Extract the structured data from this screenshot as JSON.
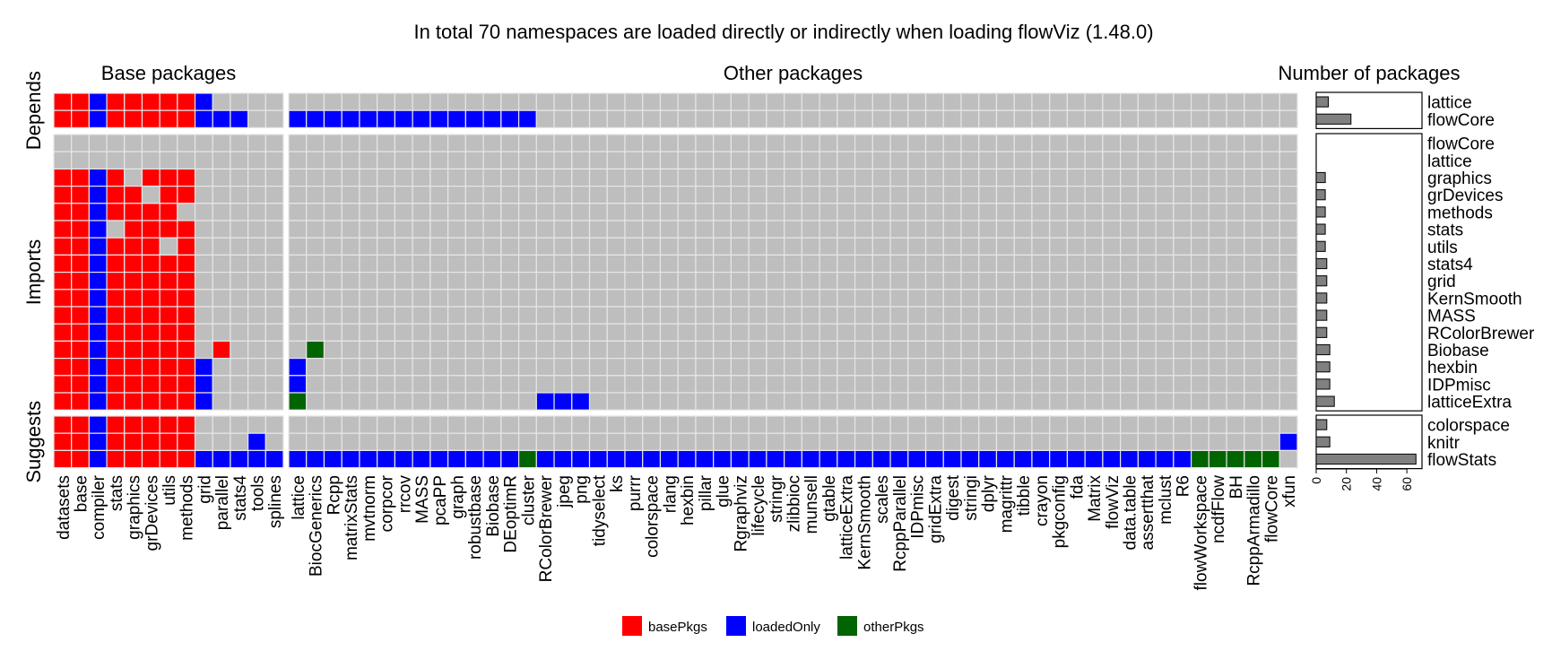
{
  "chart_data": {
    "type": "heatmap",
    "title": "In total 70 namespaces are loaded directly or indirectly when loading flowViz (1.48.0)",
    "panel_titles": [
      "Base packages",
      "Other packages",
      "Number of packages"
    ],
    "group_labels": [
      "Depends",
      "Imports",
      "Suggests"
    ],
    "columns_base": [
      "datasets",
      "base",
      "compiler",
      "stats",
      "graphics",
      "grDevices",
      "utils",
      "methods",
      "grid",
      "parallel",
      "stats4",
      "tools",
      "splines"
    ],
    "columns_other": [
      "lattice",
      "BiocGenerics",
      "Rcpp",
      "matrixStats",
      "mvtnorm",
      "corpcor",
      "rrcov",
      "MASS",
      "pcaPP",
      "graph",
      "robustbase",
      "Biobase",
      "DEoptimR",
      "cluster",
      "RColorBrewer",
      "jpeg",
      "png",
      "tidyselect",
      "ks",
      "purrr",
      "colorspace",
      "rlang",
      "hexbin",
      "pillar",
      "glue",
      "Rgraphviz",
      "lifecycle",
      "stringr",
      "zlibbioc",
      "munsell",
      "gtable",
      "latticeExtra",
      "KernSmooth",
      "scales",
      "RcppParallel",
      "IDPmisc",
      "gridExtra",
      "digest",
      "stringi",
      "dplyr",
      "magrittr",
      "tibble",
      "crayon",
      "pkgconfig",
      "fda",
      "Matrix",
      "flowViz",
      "data.table",
      "assertthat",
      "mclust",
      "R6",
      "flowWorkspace",
      "ncdfFlow",
      "BH",
      "RcppArmadillo",
      "flowCore",
      "xfun"
    ],
    "groups": [
      {
        "name": "Depends",
        "rows": [
          {
            "pkg": "lattice",
            "count": 8,
            "base": [
              "r",
              "r",
              "b",
              "r",
              "r",
              "r",
              "r",
              "r",
              "b",
              "",
              "",
              "",
              ""
            ],
            "other": ""
          },
          {
            "pkg": "flowCore",
            "count": 23,
            "base": [
              "r",
              "r",
              "b",
              "r",
              "r",
              "r",
              "r",
              "r",
              "b",
              "b",
              "b",
              "",
              ""
            ],
            "other": "b*14"
          }
        ]
      },
      {
        "name": "Imports",
        "rows": [
          {
            "pkg": "flowCore",
            "count": 0,
            "base": [
              "",
              "",
              "",
              "",
              "",
              "",
              "",
              "",
              "",
              "",
              "",
              "",
              ""
            ],
            "other": ""
          },
          {
            "pkg": "lattice",
            "count": 0,
            "base": [
              "",
              "",
              "",
              "",
              "",
              "",
              "",
              "",
              "",
              "",
              "",
              "",
              ""
            ],
            "other": ""
          },
          {
            "pkg": "graphics",
            "count": 6,
            "base": [
              "r",
              "r",
              "b",
              "r",
              "",
              "r",
              "r",
              "r",
              "",
              "",
              "",
              "",
              ""
            ],
            "other": ""
          },
          {
            "pkg": "grDevices",
            "count": 6,
            "base": [
              "r",
              "r",
              "b",
              "r",
              "r",
              "",
              "r",
              "r",
              "",
              "",
              "",
              "",
              ""
            ],
            "other": ""
          },
          {
            "pkg": "methods",
            "count": 6,
            "base": [
              "r",
              "r",
              "b",
              "r",
              "r",
              "r",
              "r",
              "",
              "",
              "",
              "",
              "",
              ""
            ],
            "other": ""
          },
          {
            "pkg": "stats",
            "count": 6,
            "base": [
              "r",
              "r",
              "b",
              "",
              "r",
              "r",
              "r",
              "r",
              "",
              "",
              "",
              "",
              ""
            ],
            "other": ""
          },
          {
            "pkg": "utils",
            "count": 6,
            "base": [
              "r",
              "r",
              "b",
              "r",
              "r",
              "r",
              "",
              "r",
              "",
              "",
              "",
              "",
              ""
            ],
            "other": ""
          },
          {
            "pkg": "stats4",
            "count": 7,
            "base": [
              "r",
              "r",
              "b",
              "r",
              "r",
              "r",
              "r",
              "r",
              "",
              "",
              "",
              "",
              ""
            ],
            "other": ""
          },
          {
            "pkg": "grid",
            "count": 7,
            "base": [
              "r",
              "r",
              "b",
              "r",
              "r",
              "r",
              "r",
              "r",
              "",
              "",
              "",
              "",
              ""
            ],
            "other": ""
          },
          {
            "pkg": "KernSmooth",
            "count": 7,
            "base": [
              "r",
              "r",
              "b",
              "r",
              "r",
              "r",
              "r",
              "r",
              "",
              "",
              "",
              "",
              ""
            ],
            "other": ""
          },
          {
            "pkg": "MASS",
            "count": 7,
            "base": [
              "r",
              "r",
              "b",
              "r",
              "r",
              "r",
              "r",
              "r",
              "",
              "",
              "",
              "",
              ""
            ],
            "other": ""
          },
          {
            "pkg": "RColorBrewer",
            "count": 7,
            "base": [
              "r",
              "r",
              "b",
              "r",
              "r",
              "r",
              "r",
              "r",
              "",
              "",
              "",
              "",
              ""
            ],
            "other": ""
          },
          {
            "pkg": "Biobase",
            "count": 9,
            "base": [
              "r",
              "r",
              "b",
              "r",
              "r",
              "r",
              "r",
              "r",
              "",
              "r",
              "",
              "",
              ""
            ],
            "other": ".g"
          },
          {
            "pkg": "hexbin",
            "count": 9,
            "base": [
              "r",
              "r",
              "b",
              "r",
              "r",
              "r",
              "r",
              "r",
              "b",
              "",
              "",
              "",
              ""
            ],
            "other": "b"
          },
          {
            "pkg": "IDPmisc",
            "count": 9,
            "base": [
              "r",
              "r",
              "b",
              "r",
              "r",
              "r",
              "r",
              "r",
              "b",
              "",
              "",
              "",
              ""
            ],
            "other": "b"
          },
          {
            "pkg": "latticeExtra",
            "count": 12,
            "base": [
              "r",
              "r",
              "b",
              "r",
              "r",
              "r",
              "r",
              "r",
              "b",
              "",
              "",
              "",
              ""
            ],
            "other": "g.............bbb"
          }
        ]
      },
      {
        "name": "Suggests",
        "rows": [
          {
            "pkg": "colorspace",
            "count": 7,
            "base": [
              "r",
              "r",
              "b",
              "r",
              "r",
              "r",
              "r",
              "r",
              "",
              "",
              "",
              "",
              ""
            ],
            "other": ""
          },
          {
            "pkg": "knitr",
            "count": 9,
            "base": [
              "r",
              "r",
              "b",
              "r",
              "r",
              "r",
              "r",
              "r",
              "",
              "",
              "",
              "b",
              ""
            ],
            "other": "........................................................b"
          },
          {
            "pkg": "flowStats",
            "count": 66,
            "base": [
              "r",
              "r",
              "b",
              "r",
              "r",
              "r",
              "r",
              "r",
              "b",
              "b",
              "b",
              "b",
              "b"
            ],
            "other": "b*13,g,b*37,g*5,."
          }
        ]
      }
    ],
    "colors": {
      "basePkgs": "#ff0000",
      "loadedOnly": "#0000ff",
      "otherPkgs": "#006400",
      "empty": "#bebebe"
    },
    "legend": [
      {
        "key": "r",
        "label": "basePkgs"
      },
      {
        "key": "b",
        "label": "loadedOnly"
      },
      {
        "key": "g",
        "label": "otherPkgs"
      }
    ],
    "legend_position": "bottom",
    "bar_axis": {
      "ticks": [
        0,
        20,
        40,
        60
      ],
      "xlim": [
        0,
        70
      ]
    }
  }
}
